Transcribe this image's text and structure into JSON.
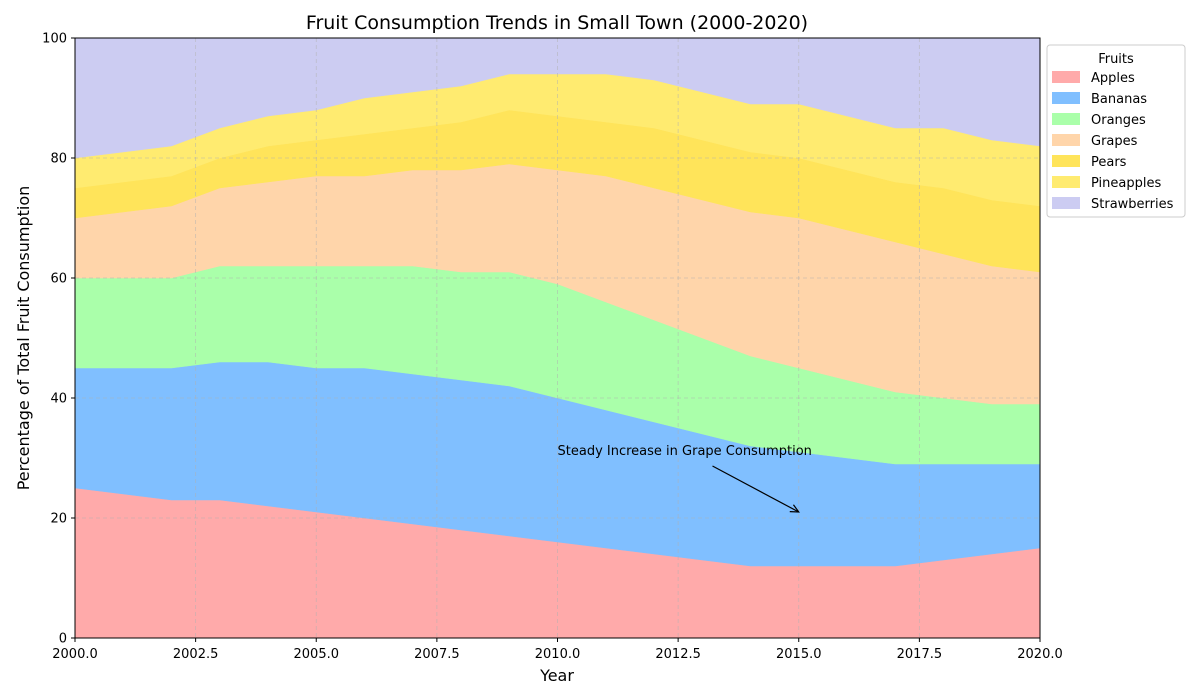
{
  "chart_data": {
    "type": "area",
    "stacked": true,
    "title": "Fruit Consumption Trends in Small Town (2000-2020)",
    "xlabel": "Year",
    "ylabel": "Percentage of Total Fruit Consumption",
    "xlim": [
      2000,
      2020
    ],
    "ylim": [
      0,
      100
    ],
    "xticks": [
      "2000.0",
      "2002.5",
      "2005.0",
      "2007.5",
      "2010.0",
      "2012.5",
      "2015.0",
      "2017.5",
      "2020.0"
    ],
    "yticks": [
      "0",
      "20",
      "40",
      "60",
      "80",
      "100"
    ],
    "grid": true,
    "legend_title": "Fruits",
    "legend_position": "outside-top-right",
    "x": [
      2000,
      2002,
      2003,
      2004,
      2005,
      2006,
      2007,
      2008,
      2009,
      2010,
      2011,
      2012,
      2013,
      2014,
      2015,
      2016,
      2017,
      2018,
      2019,
      2020
    ],
    "series": [
      {
        "name": "Apples",
        "color": "#ffaaaa",
        "values": [
          25,
          23,
          23,
          22,
          21,
          20,
          19,
          18,
          17,
          16,
          15,
          14,
          13,
          12,
          12,
          12,
          12,
          13,
          14,
          15
        ]
      },
      {
        "name": "Bananas",
        "color": "#80bfff",
        "values": [
          20,
          22,
          23,
          24,
          24,
          25,
          25,
          25,
          25,
          24,
          23,
          22,
          21,
          20,
          19,
          18,
          17,
          16,
          15,
          14
        ]
      },
      {
        "name": "Oranges",
        "color": "#aaffaa",
        "values": [
          15,
          15,
          16,
          16,
          17,
          17,
          18,
          18,
          19,
          19,
          18,
          17,
          16,
          15,
          14,
          13,
          12,
          11,
          10,
          10
        ]
      },
      {
        "name": "Grapes",
        "color": "#ffd5aa",
        "values": [
          10,
          12,
          13,
          14,
          15,
          15,
          16,
          17,
          18,
          19,
          21,
          22,
          23,
          24,
          25,
          25,
          25,
          24,
          23,
          22
        ]
      },
      {
        "name": "Pears",
        "color": "#ffe45a",
        "values": [
          5,
          5,
          5,
          6,
          6,
          7,
          7,
          8,
          9,
          9,
          9,
          10,
          10,
          10,
          10,
          10,
          10,
          11,
          11,
          11
        ]
      },
      {
        "name": "Pineapples",
        "color": "#ffeb70",
        "values": [
          5,
          5,
          5,
          5,
          5,
          6,
          6,
          6,
          6,
          7,
          8,
          8,
          8,
          8,
          9,
          9,
          9,
          10,
          10,
          10
        ]
      },
      {
        "name": "Strawberries",
        "color": "#ccccf2",
        "values": [
          20,
          18,
          15,
          13,
          12,
          10,
          9,
          8,
          6,
          6,
          6,
          7,
          9,
          11,
          11,
          13,
          15,
          15,
          17,
          18
        ]
      }
    ],
    "annotations": [
      {
        "text": "Steady Increase in Grape Consumption",
        "text_x": 2010,
        "text_y": 30,
        "arrow_to_x": 2015,
        "arrow_to_y": 21
      }
    ]
  }
}
